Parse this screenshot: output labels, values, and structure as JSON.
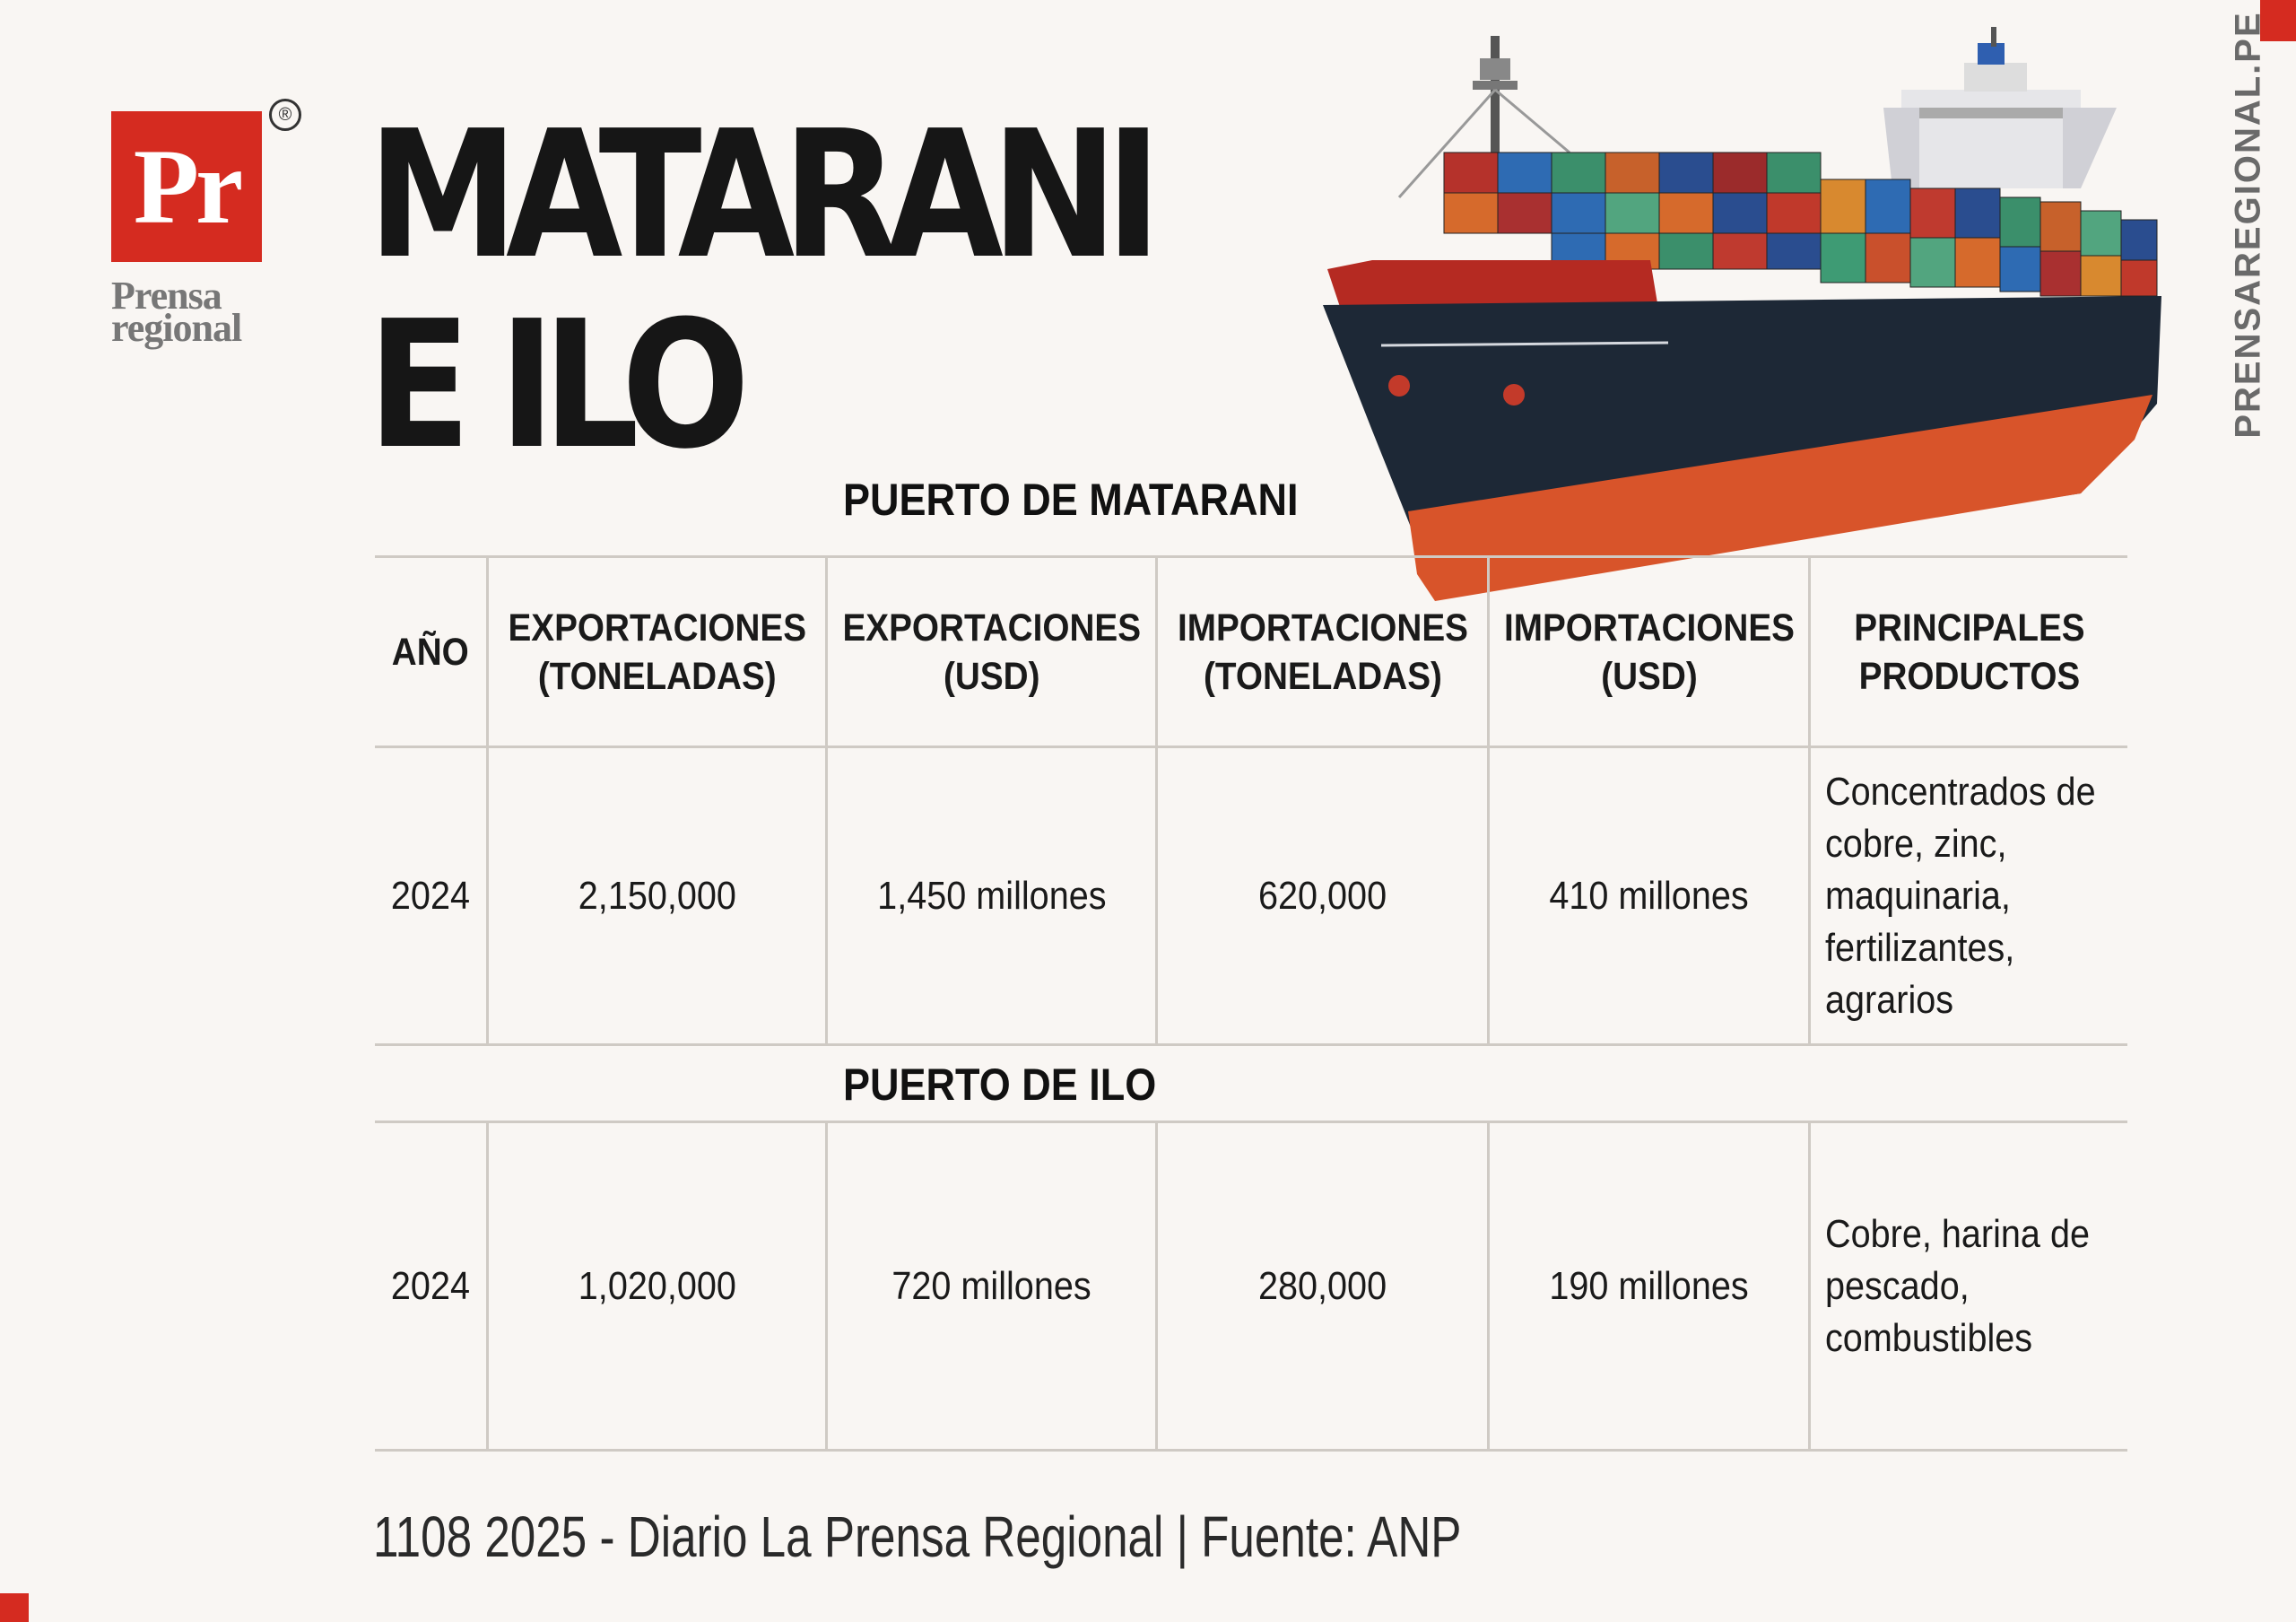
{
  "brand": {
    "logo_text": "Pr",
    "logo_name": "Prensa regional",
    "registered_mark": "®",
    "side_url": "PRENSAREGIONAL.PE",
    "colors": {
      "brand_red": "#d52b20",
      "background": "#f9f6f3",
      "grid_line": "#cfcac4"
    }
  },
  "headline": {
    "line1": "MATARANI",
    "line2": "E ILO"
  },
  "illustration": {
    "icon": "container-ship"
  },
  "table": {
    "headers": [
      {
        "line1": "AÑO",
        "line2": ""
      },
      {
        "line1": "EXPORTACIONES",
        "line2": "(TONELADAS)"
      },
      {
        "line1": "EXPORTACIONES",
        "line2": "(USD)"
      },
      {
        "line1": "IMPORTACIONES",
        "line2": "(TONELADAS)"
      },
      {
        "line1": "IMPORTACIONES",
        "line2": "(USD)"
      },
      {
        "line1": "PRINCIPALES",
        "line2": "PRODUCTOS"
      }
    ],
    "sections": [
      {
        "title": "PUERTO DE MATARANI",
        "row": {
          "year": "2024",
          "exports_tons": "2,150,000",
          "exports_usd": "1,450 millones",
          "imports_tons": "620,000",
          "imports_usd": "410 millones",
          "products": [
            "Concentrados de",
            "cobre, zinc,",
            "maquinaria,",
            "fertilizantes,",
            "agrarios"
          ]
        }
      },
      {
        "title": "PUERTO DE ILO",
        "row": {
          "year": "2024",
          "exports_tons": "1,020,000",
          "exports_usd": "720 millones",
          "imports_tons": "280,000",
          "imports_usd": "190 millones",
          "products": [
            "Cobre, harina de",
            "pescado,",
            "combustibles"
          ]
        }
      }
    ]
  },
  "footer": {
    "text": "1108 2025 - Diario La Prensa Regional | Fuente: ANP"
  }
}
